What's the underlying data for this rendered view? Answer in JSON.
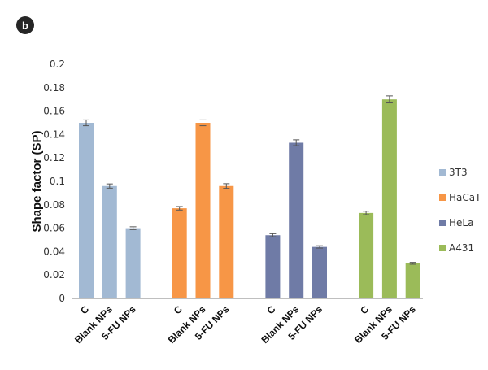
{
  "panel_label": "b",
  "chart_data": {
    "type": "bar",
    "title": "",
    "xlabel": "",
    "ylabel": "Shape factor (SP)",
    "ylim": [
      0,
      0.2
    ],
    "yticks": [
      "0",
      "0.02",
      "0.04",
      "0.06",
      "0.08",
      "0.1",
      "0.12",
      "0.14",
      "0.16",
      "0.18",
      "0.2"
    ],
    "legend_position": "right",
    "categories": [
      "C",
      "Blank NPs",
      "5-FU NPs"
    ],
    "series": [
      {
        "name": "3T3",
        "color": "#A2B9D3",
        "values": [
          0.15,
          0.096,
          0.06
        ],
        "errors": [
          0.0025,
          0.0018,
          0.0012
        ]
      },
      {
        "name": "HaCaT",
        "color": "#F79646",
        "values": [
          0.077,
          0.15,
          0.096
        ],
        "errors": [
          0.0015,
          0.0025,
          0.002
        ]
      },
      {
        "name": "HeLa",
        "color": "#6F7BA6",
        "values": [
          0.054,
          0.133,
          0.044
        ],
        "errors": [
          0.0013,
          0.0025,
          0.001
        ]
      },
      {
        "name": "A431",
        "color": "#9BBB59",
        "values": [
          0.073,
          0.17,
          0.03
        ],
        "errors": [
          0.0015,
          0.003,
          0.0008
        ]
      }
    ]
  }
}
